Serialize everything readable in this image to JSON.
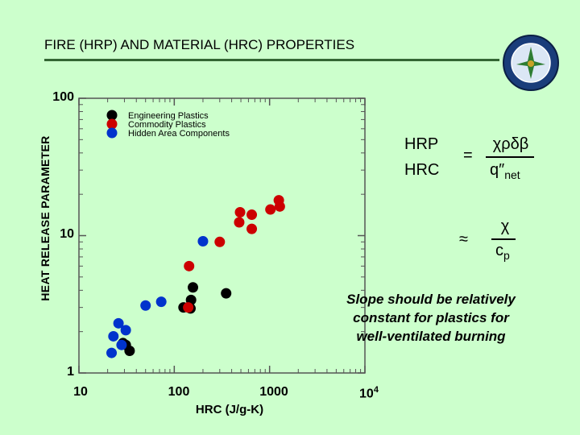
{
  "slide": {
    "title": "FIRE (HRP) AND MATERIAL (HRC) PROPERTIES",
    "title_rule_color": "#336633",
    "background_color": "#ccffcc",
    "seal_icon": "faa-seal-icon"
  },
  "chart_data": {
    "type": "scatter",
    "title": "",
    "xlabel": "HRC (J/g-K)",
    "ylabel": "HEAT RELEASE PARAMETER",
    "x_scale": "log",
    "y_scale": "log",
    "xlim": [
      10,
      10000
    ],
    "ylim": [
      1,
      100
    ],
    "x_tick_labels": [
      "10",
      "100",
      "1000",
      "10"
    ],
    "x_tick_last_exponent": "4",
    "y_tick_labels": [
      "1",
      "10",
      "100"
    ],
    "grid": false,
    "legend_position": "top-left",
    "series": [
      {
        "name": "Engineering Plastics",
        "color": "#000000",
        "points": [
          [
            29,
            1.65
          ],
          [
            31,
            1.6
          ],
          [
            34,
            1.45
          ],
          [
            125,
            3.0
          ],
          [
            148,
            2.95
          ],
          [
            150,
            3.4
          ],
          [
            157,
            4.2
          ],
          [
            350,
            3.8
          ]
        ]
      },
      {
        "name": "Commodity Plastics",
        "color": "#cc0000",
        "points": [
          [
            140,
            3.0
          ],
          [
            143,
            6.0
          ],
          [
            300,
            9.0
          ],
          [
            480,
            12.5
          ],
          [
            650,
            11.2
          ],
          [
            490,
            14.8
          ],
          [
            650,
            14.2
          ],
          [
            1020,
            15.5
          ],
          [
            1280,
            16.3
          ],
          [
            1250,
            18.1
          ]
        ]
      },
      {
        "name": "Hidden Area Components",
        "color": "#0033cc",
        "points": [
          [
            22,
            1.4
          ],
          [
            23,
            1.85
          ],
          [
            26,
            2.3
          ],
          [
            28,
            1.6
          ],
          [
            31,
            2.05
          ],
          [
            50,
            3.1
          ],
          [
            73,
            3.3
          ],
          [
            200,
            9.1
          ]
        ]
      }
    ]
  },
  "formula": {
    "lhs_top": "HRP",
    "lhs_bottom": "HRC",
    "equals": "=",
    "num1": "χρδβ",
    "den1": "q″",
    "den1_sub": "net",
    "approx": "≈",
    "num2": "χ",
    "den2": "c",
    "den2_sub": "p"
  },
  "note": {
    "line1": "Slope should be relatively",
    "line2": "constant for plastics for",
    "line3": "well-ventilated burning"
  }
}
